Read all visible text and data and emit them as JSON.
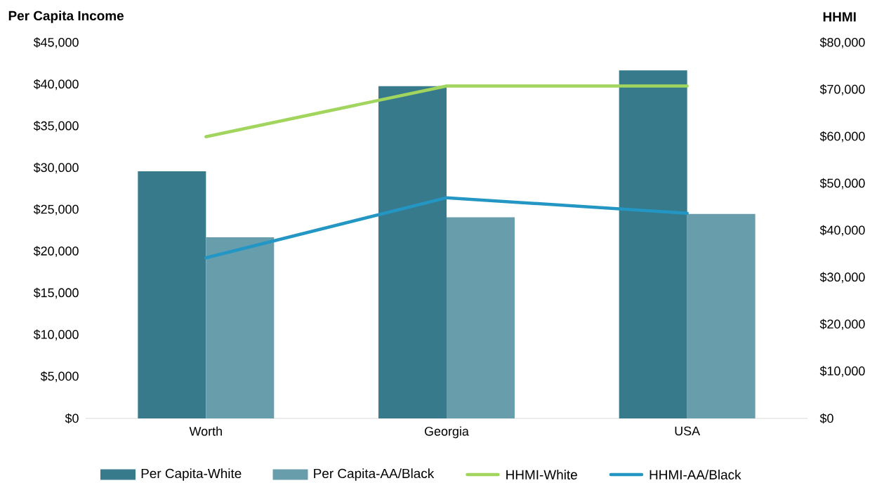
{
  "chart_data": {
    "type": "bar",
    "ylabel": "Per Capita Income",
    "y2label": "HHMI",
    "categories": [
      "Worth",
      "Georgia",
      "USA"
    ],
    "ylim": [
      0,
      45000
    ],
    "yticks": [
      {
        "value": 0,
        "label": "$0"
      },
      {
        "value": 5000,
        "label": "$5,000"
      },
      {
        "value": 10000,
        "label": "$10,000"
      },
      {
        "value": 15000,
        "label": "$15,000"
      },
      {
        "value": 20000,
        "label": "$20,000"
      },
      {
        "value": 25000,
        "label": "$25,000"
      },
      {
        "value": 30000,
        "label": "$30,000"
      },
      {
        "value": 35000,
        "label": "$35,000"
      },
      {
        "value": 40000,
        "label": "$40,000"
      },
      {
        "value": 45000,
        "label": "$45,000"
      }
    ],
    "y2lim": [
      0,
      80000
    ],
    "y2ticks": [
      {
        "value": 0,
        "label": "$0"
      },
      {
        "value": 10000,
        "label": "$10,000"
      },
      {
        "value": 20000,
        "label": "$20,000"
      },
      {
        "value": 30000,
        "label": "$30,000"
      },
      {
        "value": 40000,
        "label": "$40,000"
      },
      {
        "value": 50000,
        "label": "$50,000"
      },
      {
        "value": 60000,
        "label": "$60,000"
      },
      {
        "value": 70000,
        "label": "$70,000"
      },
      {
        "value": 80000,
        "label": "$80,000"
      }
    ],
    "series": [
      {
        "name": "Per Capita-White",
        "color": "#367a8b",
        "values": [
          29600,
          39800,
          41700
        ]
      },
      {
        "name": "Per Capita-AA/Black",
        "color": "#689eac",
        "values": [
          21700,
          24100,
          24500
        ]
      },
      {
        "name": "HHMI-White",
        "type": "line",
        "axis": "y2",
        "color": "#a1d55d",
        "values": [
          60000,
          70800,
          70800
        ]
      },
      {
        "name": "HHMI-AA/Black",
        "type": "line",
        "axis": "y2",
        "color": "#2496c4",
        "values": [
          34200,
          47000,
          43700
        ]
      }
    ],
    "legend": "bottom"
  }
}
